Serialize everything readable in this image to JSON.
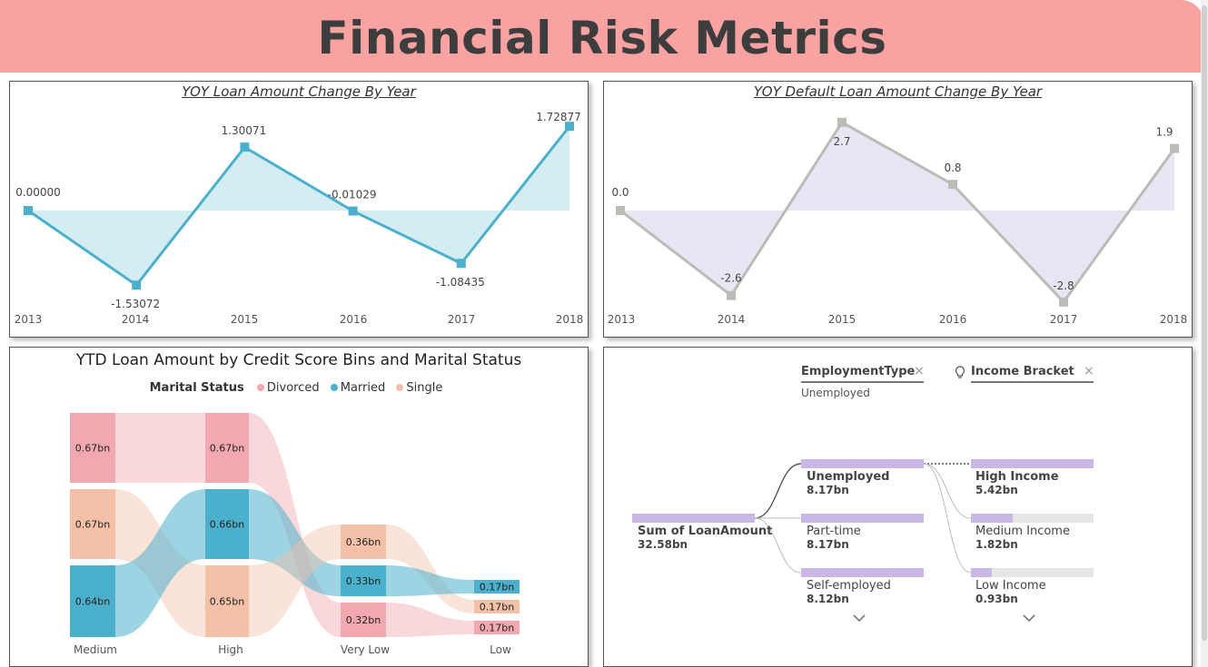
{
  "header": {
    "title": "Financial Risk Metrics"
  },
  "colors": {
    "header_bg": "#f8a3a1",
    "series1": "#4bb0cc",
    "series1_fill": "#d4edf2",
    "series2": "#bcbcb6",
    "series2_fill": "#e6e7f3",
    "divorced": "#f2a8b0",
    "married": "#4bb0cc",
    "single": "#f4c1a8",
    "tree_bar": "#c9b7e6"
  },
  "chart_yoy_loan": {
    "title": "YOY Loan Amount Change By Year",
    "chart_data": {
      "type": "area",
      "x": [
        "2013",
        "2014",
        "2015",
        "2016",
        "2017",
        "2018"
      ],
      "values": [
        0,
        -1.53072,
        1.30071,
        -0.01029,
        -1.08435,
        1.72877
      ],
      "labels": [
        "0.00000",
        "-1.53072",
        "1.30071",
        "-0.01029",
        "-1.08435",
        "1.72877"
      ]
    }
  },
  "chart_yoy_default": {
    "title": "YOY Default Loan Amount Change By Year",
    "chart_data": {
      "type": "area",
      "x": [
        "2013",
        "2014",
        "2015",
        "2016",
        "2017",
        "2018"
      ],
      "values": [
        0.0,
        -2.6,
        2.7,
        0.8,
        -2.8,
        1.9
      ],
      "labels": [
        "0.0",
        "-2.6",
        "2.7",
        "0.8",
        "-2.8",
        "1.9"
      ]
    }
  },
  "sankey": {
    "title": "YTD Loan Amount by Credit Score Bins and Marital Status",
    "legend_title": "Marital Status",
    "legend": [
      "Divorced",
      "Married",
      "Single"
    ],
    "chart_data": {
      "type": "sankey",
      "stages": [
        "Medium",
        "High",
        "Very Low",
        "Low"
      ],
      "nodes": [
        {
          "stage": "Medium",
          "status": "Divorced",
          "value": "0.67bn"
        },
        {
          "stage": "Medium",
          "status": "Single",
          "value": "0.67bn"
        },
        {
          "stage": "Medium",
          "status": "Married",
          "value": "0.64bn"
        },
        {
          "stage": "High",
          "status": "Divorced",
          "value": "0.67bn"
        },
        {
          "stage": "High",
          "status": "Married",
          "value": "0.66bn"
        },
        {
          "stage": "High",
          "status": "Single",
          "value": "0.65bn"
        },
        {
          "stage": "Very Low",
          "status": "Single",
          "value": "0.36bn"
        },
        {
          "stage": "Very Low",
          "status": "Married",
          "value": "0.33bn"
        },
        {
          "stage": "Very Low",
          "status": "Divorced",
          "value": "0.32bn"
        },
        {
          "stage": "Low",
          "status": "Married",
          "value": "0.17bn"
        },
        {
          "stage": "Low",
          "status": "Single",
          "value": "0.17bn"
        },
        {
          "stage": "Low",
          "status": "Divorced",
          "value": "0.17bn"
        }
      ]
    }
  },
  "decomp_tree": {
    "level1_header": "EmploymentType",
    "level1_selected": "Unemployed",
    "level2_header": "Income Bracket",
    "root": {
      "label": "Sum of LoanAmount",
      "value": "32.58bn"
    },
    "level1": [
      {
        "label": "Unemployed",
        "value": "8.17bn",
        "fill": 1.0,
        "selected": true
      },
      {
        "label": "Part-time",
        "value": "8.17bn",
        "fill": 1.0,
        "selected": false
      },
      {
        "label": "Self-employed",
        "value": "8.12bn",
        "fill": 1.0,
        "selected": false
      }
    ],
    "level2": [
      {
        "label": "High Income",
        "value": "5.42bn",
        "fill": 1.0,
        "selected": true
      },
      {
        "label": "Medium Income",
        "value": "1.82bn",
        "fill": 0.34,
        "selected": false
      },
      {
        "label": "Low Income",
        "value": "0.93bn",
        "fill": 0.17,
        "selected": false
      }
    ]
  }
}
